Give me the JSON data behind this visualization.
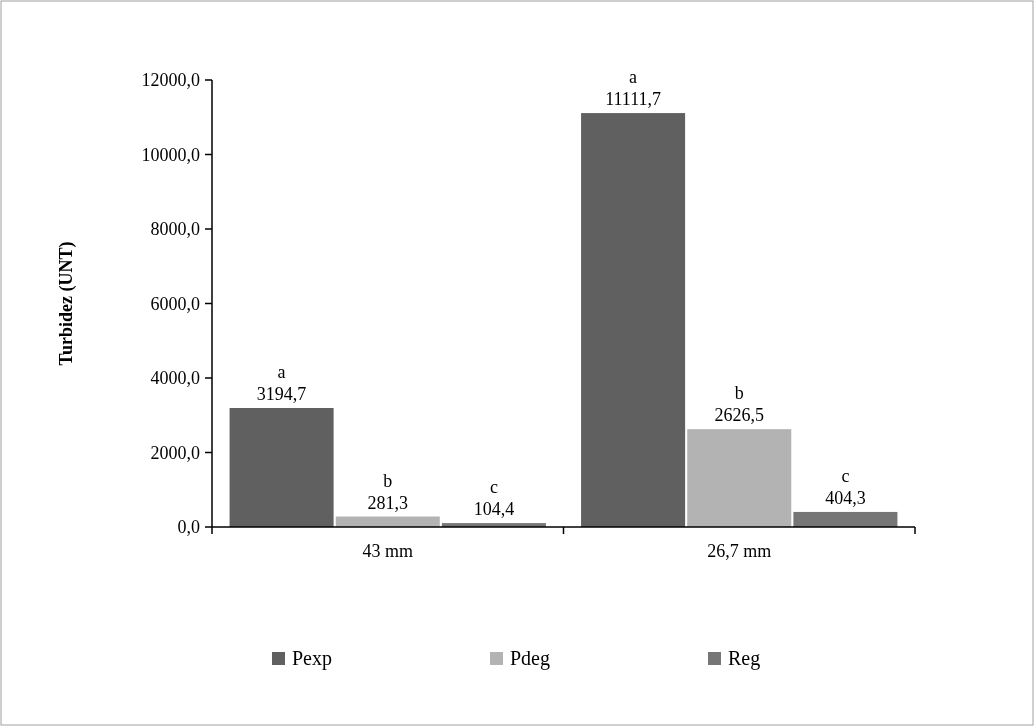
{
  "chart_data": {
    "type": "bar",
    "ylabel": "Turbidez (UNT)",
    "categories": [
      "43 mm",
      "26,7 mm"
    ],
    "series": [
      {
        "name": "Pexp",
        "color": "#606060",
        "values": [
          3194.7,
          11111.7
        ],
        "value_labels": [
          "a\n3194,7",
          "a\n11111,7"
        ]
      },
      {
        "name": "Pdeg",
        "color": "#b3b3b3",
        "values": [
          281.3,
          2626.5
        ],
        "value_labels": [
          "b\n281,3",
          "b\n2626,5"
        ]
      },
      {
        "name": "Reg",
        "color": "#767676",
        "values": [
          104.4,
          404.3
        ],
        "value_labels": [
          "c\n104,4",
          "c\n404,3"
        ]
      }
    ],
    "ylim": [
      0,
      12000
    ],
    "yticks": [
      {
        "value": 0,
        "label": "0,0"
      },
      {
        "value": 2000,
        "label": "2000,0"
      },
      {
        "value": 4000,
        "label": "4000,0"
      },
      {
        "value": 6000,
        "label": "6000,0"
      },
      {
        "value": 8000,
        "label": "8000,0"
      },
      {
        "value": 10000,
        "label": "10000,0"
      },
      {
        "value": 12000,
        "label": "12000,0"
      }
    ],
    "grid": false,
    "legend": "bottom"
  }
}
